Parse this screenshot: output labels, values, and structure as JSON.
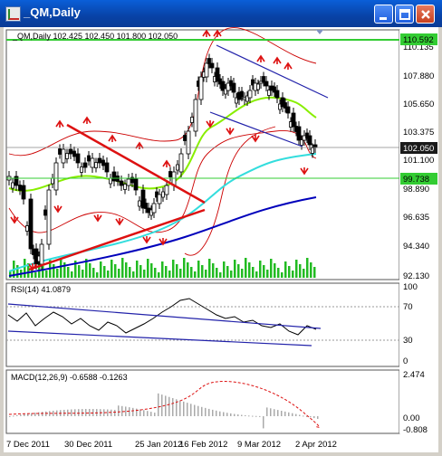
{
  "window": {
    "title": "_QM,Daily",
    "buttons": [
      "minimize-button",
      "maximize-button",
      "close-button"
    ]
  },
  "main_chart": {
    "header": "_QM,Daily  102.425 102.450 101.800 102.050",
    "price_ticks": [
      "110.135",
      "107.880",
      "105.650",
      "103.375",
      "101.100",
      "98.890",
      "96.635",
      "94.340",
      "92.130"
    ],
    "current_price": "102.050",
    "level_top": "110.592",
    "level_mid": "99.738",
    "colors": {
      "level_line": "#33cc33",
      "price_marker": "#1a1a1a",
      "ma_fast": "#88ee00",
      "ma_mid": "#33dddd",
      "ma_slow": "#0000bb",
      "bands": "#cc0000",
      "trendline_red": "#dd1111",
      "trendline_blue": "#2222aa",
      "volume": "#22bb22"
    }
  },
  "rsi_panel": {
    "header": "RSI(14) 41.0879",
    "ticks": [
      "100",
      "70",
      "30",
      "0"
    ]
  },
  "macd_panel": {
    "header": "MACD(12,26,9) -0.6588 -0.1263",
    "ticks": [
      "2.474",
      "0.00",
      "-0.808"
    ]
  },
  "date_axis": [
    "7 Dec 2011",
    "30 Dec 2011",
    "25 Jan 2012",
    "16 Feb 2012",
    "9 Mar 2012",
    "2 Apr 2012"
  ]
}
